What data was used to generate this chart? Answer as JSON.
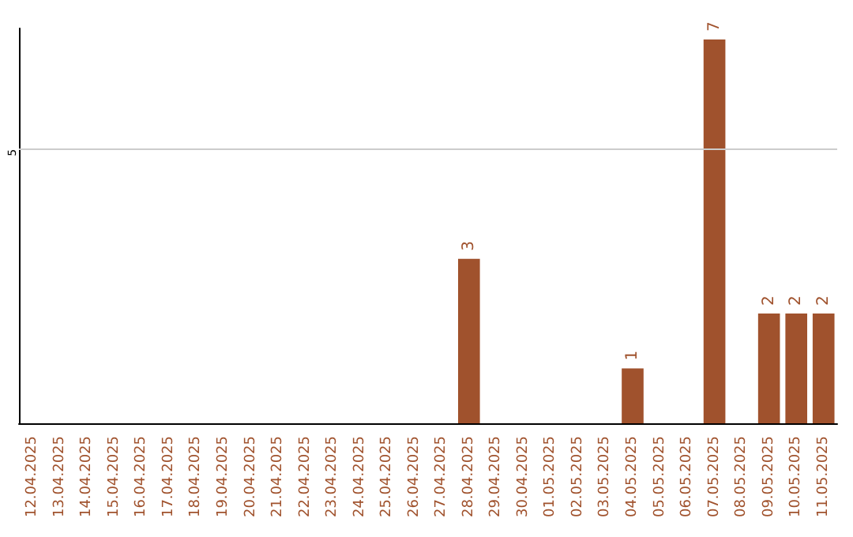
{
  "chart_data": {
    "type": "bar",
    "categories": [
      "12.04.2025",
      "13.04.2025",
      "14.04.2025",
      "15.04.2025",
      "16.04.2025",
      "17.04.2025",
      "18.04.2025",
      "19.04.2025",
      "20.04.2025",
      "21.04.2025",
      "22.04.2025",
      "23.04.2025",
      "24.04.2025",
      "25.04.2025",
      "26.04.2025",
      "27.04.2025",
      "28.04.2025",
      "29.04.2025",
      "30.04.2025",
      "01.05.2025",
      "02.05.2025",
      "03.05.2025",
      "04.05.2025",
      "05.05.2025",
      "06.05.2025",
      "07.05.2025",
      "08.05.2025",
      "09.05.2025",
      "10.05.2025",
      "11.05.2025"
    ],
    "values": [
      null,
      null,
      null,
      null,
      null,
      null,
      null,
      null,
      null,
      null,
      null,
      null,
      null,
      null,
      null,
      null,
      3,
      null,
      null,
      null,
      null,
      null,
      1,
      null,
      null,
      7,
      null,
      2,
      2,
      2
    ],
    "data_labels": true,
    "color": "#a0522d",
    "ylim": [
      0,
      7.2
    ],
    "ref_lines": [
      {
        "axis": "y",
        "value": 5,
        "label": "5",
        "color": "#cccccc"
      }
    ]
  }
}
